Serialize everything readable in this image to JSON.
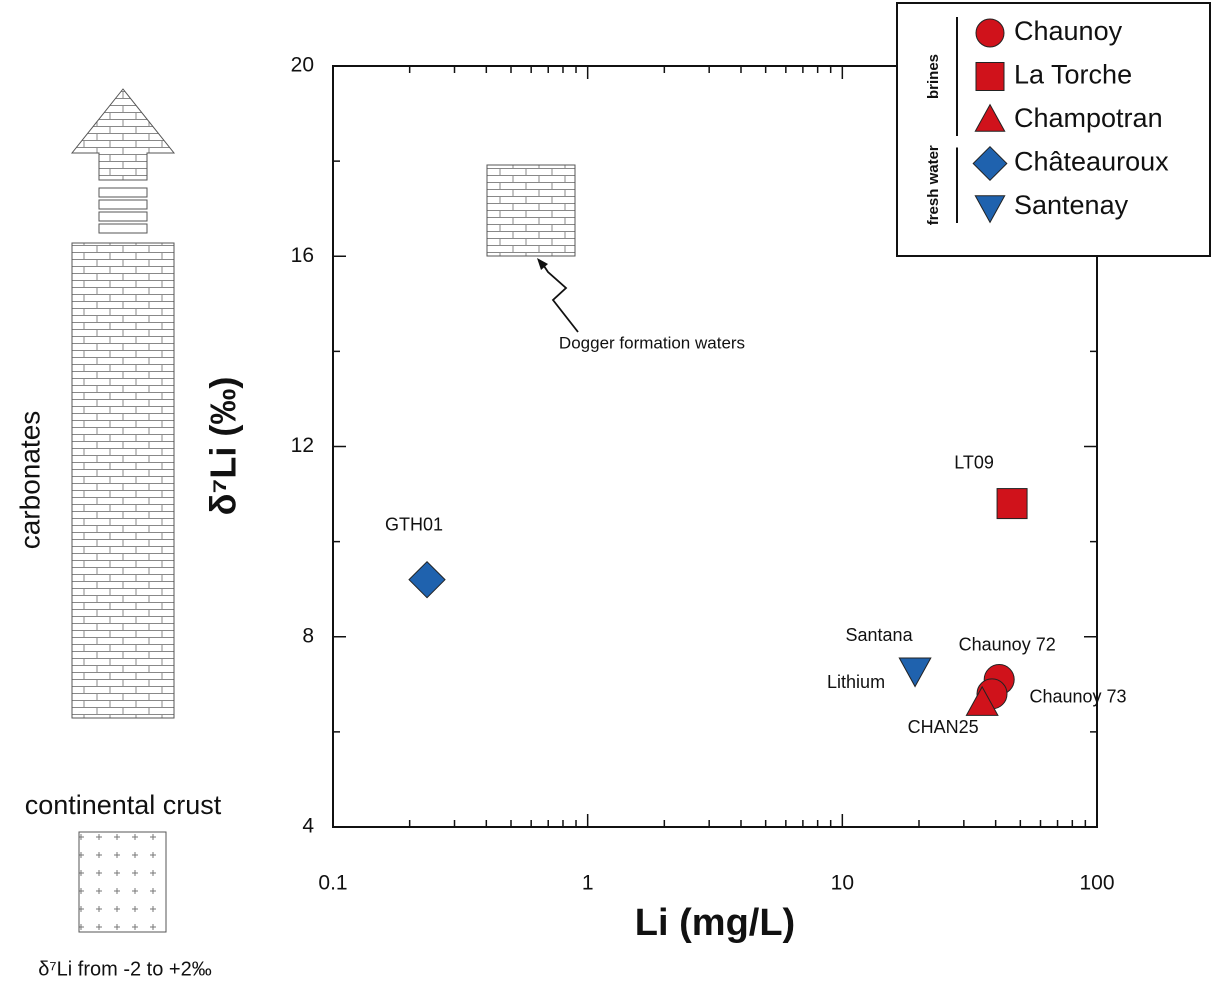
{
  "chart_data": {
    "type": "scatter",
    "xlabel": "Li (mg/L)",
    "ylabel": "δ⁷Li (‰)",
    "xscale": "log",
    "xlim": [
      0.1,
      100
    ],
    "xticks": [
      0.1,
      1,
      10,
      100
    ],
    "xminor_ticks": [
      0.2,
      0.3,
      0.4,
      0.5,
      0.6,
      0.7,
      0.8,
      0.9,
      2,
      3,
      4,
      5,
      6,
      7,
      8,
      9,
      20,
      30,
      40,
      50,
      60,
      70,
      80,
      90
    ],
    "ylim": [
      4,
      20
    ],
    "yticks": [
      4,
      8,
      12,
      16,
      20
    ],
    "yminor_ticks": [
      6,
      10,
      14,
      18
    ],
    "legend_position": "upper right",
    "series": [
      {
        "name": "Chaunoy",
        "group": "brines",
        "marker": "circle",
        "color": "#d0121b",
        "x": [
          41.3,
          38.7
        ],
        "values": [
          7.1,
          6.8
        ],
        "labels": [
          "Chaunoy 72",
          "Chaunoy 73"
        ]
      },
      {
        "name": "La Torche",
        "group": "brines",
        "marker": "square",
        "color": "#d0121b",
        "x": [
          46.4
        ],
        "values": [
          10.8
        ],
        "labels": [
          "LT09"
        ]
      },
      {
        "name": "Champotran",
        "group": "brines",
        "marker": "triangle",
        "color": "#d0121b",
        "x": [
          35.4
        ],
        "values": [
          6.6
        ],
        "labels": [
          "CHAN25"
        ]
      },
      {
        "name": "Châteauroux",
        "group": "fresh water",
        "marker": "diamond",
        "color": "#1f62ae",
        "x": [
          0.234
        ],
        "values": [
          9.2
        ],
        "labels": [
          "GTH01"
        ]
      },
      {
        "name": "Santenay",
        "group": "fresh water",
        "marker": "triangle-down",
        "color": "#1f62ae",
        "x": [
          19.3
        ],
        "values": [
          7.3
        ],
        "labels": [
          [
            "Santana",
            "Lithium"
          ]
        ]
      }
    ],
    "annotations": {
      "dogger": "Dogger formation waters",
      "carbonates": "carbonates",
      "crust": "continental crust",
      "crust_range": "δ⁷Li from -2 to +2‰"
    }
  }
}
